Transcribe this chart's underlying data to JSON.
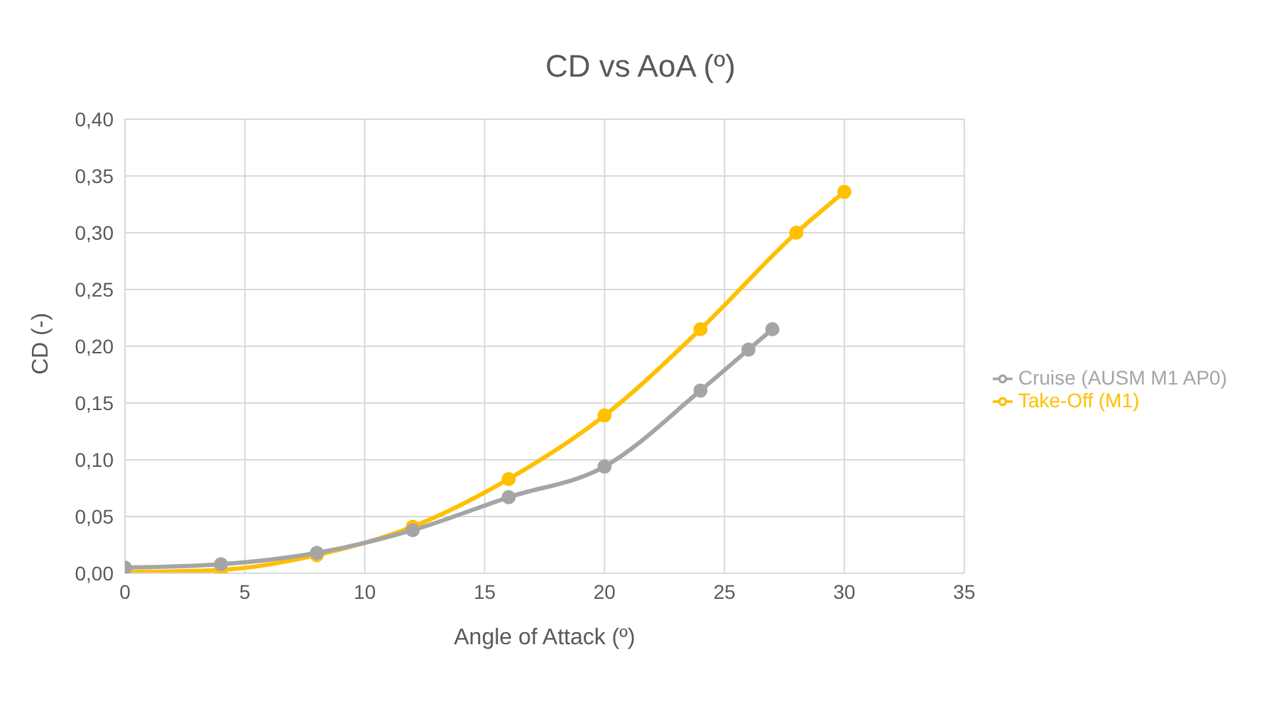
{
  "chart_data": {
    "type": "line",
    "title": "CD vs AoA (º)",
    "xlabel": "Angle of Attack (º)",
    "ylabel": "CD (-)",
    "series": [
      {
        "name": "Take-Off (M1)",
        "color": "#ffc000",
        "x": [
          0,
          4,
          8,
          12,
          16,
          20,
          24,
          28,
          30
        ],
        "values": [
          0.001,
          0.003,
          0.016,
          0.041,
          0.083,
          0.139,
          0.215,
          0.3,
          0.336
        ]
      },
      {
        "name": "Cruise (AUSM M1 AP0)",
        "color": "#a5a5a5",
        "x": [
          0,
          4,
          8,
          12,
          16,
          20,
          24,
          26,
          27
        ],
        "values": [
          0.005,
          0.008,
          0.018,
          0.038,
          0.067,
          0.094,
          0.161,
          0.197,
          0.215
        ]
      }
    ],
    "xlim": [
      0,
      35
    ],
    "xticks": [
      0,
      5,
      10,
      15,
      20,
      25,
      30,
      35
    ],
    "ylim": [
      0,
      0.4
    ],
    "yticks": [
      {
        "value": 0,
        "label": "0,00"
      },
      {
        "value": 0.05,
        "label": "0,05"
      },
      {
        "value": 0.1,
        "label": "0,10"
      },
      {
        "value": 0.15,
        "label": "0,15"
      },
      {
        "value": 0.2,
        "label": "0,20"
      },
      {
        "value": 0.25,
        "label": "0,25"
      },
      {
        "value": 0.3,
        "label": "0,30"
      },
      {
        "value": 0.35,
        "label": "0,35"
      },
      {
        "value": 0.4,
        "label": "0,40"
      }
    ],
    "grid": true,
    "legend": "right",
    "marker": "circle",
    "line_style": "solid"
  }
}
